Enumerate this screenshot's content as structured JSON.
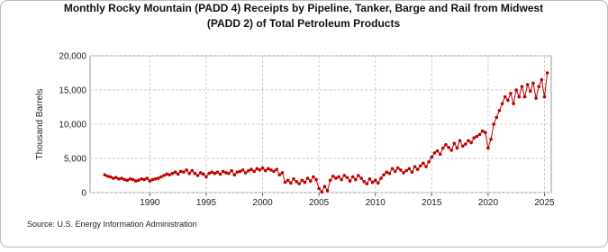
{
  "chart_data": {
    "type": "line",
    "title": [
      "Monthly Rocky Mountain (PADD 4) Receipts by Pipeline, Tanker, Barge and Rail from Midwest",
      "(PADD 2) of Total Petroleum Products"
    ],
    "y_label": "Thousand Barrels",
    "source": "Source: U.S. Energy Information Administration",
    "xlim": [
      1984.7,
      2025.6
    ],
    "xticks": [
      1990,
      1995,
      2000,
      2005,
      2010,
      2015,
      2020,
      2025
    ],
    "ylim": [
      0,
      20000
    ],
    "yticks": [
      0,
      {
        "value": 5000,
        "label": "5,000"
      },
      {
        "value": 10000,
        "label": "10,000"
      },
      {
        "value": 15000,
        "label": "15,000"
      },
      {
        "value": 20000,
        "label": "20,000"
      }
    ],
    "grid": true,
    "x": [
      1986,
      1986.25,
      1986.5,
      1986.75,
      1987,
      1987.25,
      1987.5,
      1987.75,
      1988,
      1988.25,
      1988.5,
      1988.75,
      1989,
      1989.25,
      1989.5,
      1989.75,
      1990,
      1990.25,
      1990.5,
      1990.75,
      1991,
      1991.25,
      1991.5,
      1991.75,
      1992,
      1992.25,
      1992.5,
      1992.75,
      1993,
      1993.25,
      1993.5,
      1993.75,
      1994,
      1994.25,
      1994.5,
      1994.75,
      1995,
      1995.25,
      1995.5,
      1995.75,
      1996,
      1996.25,
      1996.5,
      1996.75,
      1997,
      1997.25,
      1997.5,
      1997.75,
      1998,
      1998.25,
      1998.5,
      1998.75,
      1999,
      1999.25,
      1999.5,
      1999.75,
      2000,
      2000.25,
      2000.5,
      2000.75,
      2001,
      2001.25,
      2001.5,
      2001.75,
      2002,
      2002.25,
      2002.5,
      2002.75,
      2003,
      2003.25,
      2003.5,
      2003.75,
      2004,
      2004.25,
      2004.5,
      2004.75,
      2005,
      2005.25,
      2005.5,
      2005.75,
      2006,
      2006.25,
      2006.5,
      2006.75,
      2007,
      2007.25,
      2007.5,
      2007.75,
      2008,
      2008.25,
      2008.5,
      2008.75,
      2009,
      2009.25,
      2009.5,
      2009.75,
      2010,
      2010.25,
      2010.5,
      2010.75,
      2011,
      2011.25,
      2011.5,
      2011.75,
      2012,
      2012.25,
      2012.5,
      2012.75,
      2013,
      2013.25,
      2013.5,
      2013.75,
      2014,
      2014.25,
      2014.5,
      2014.75,
      2015,
      2015.25,
      2015.5,
      2015.75,
      2016,
      2016.25,
      2016.5,
      2016.75,
      2017,
      2017.25,
      2017.5,
      2017.75,
      2018,
      2018.25,
      2018.5,
      2018.75,
      2019,
      2019.25,
      2019.5,
      2019.75,
      2020,
      2020.25,
      2020.5,
      2020.75,
      2021,
      2021.25,
      2021.5,
      2021.75,
      2022,
      2022.25,
      2022.5,
      2022.75,
      2023,
      2023.25,
      2023.5,
      2023.75,
      2024,
      2024.25,
      2024.5,
      2024.75,
      2025,
      2025.25
    ],
    "series": [
      {
        "color": "#c00000",
        "values": [
          2600,
          2400,
          2300,
          2100,
          2200,
          2000,
          2100,
          1900,
          1800,
          2000,
          1900,
          1700,
          1800,
          2000,
          1900,
          2100,
          1700,
          1900,
          2000,
          2100,
          2300,
          2500,
          2700,
          2600,
          2800,
          3000,
          2700,
          3100,
          3000,
          3300,
          2800,
          3200,
          2800,
          2500,
          2900,
          2700,
          2300,
          2800,
          3000,
          2800,
          3000,
          2700,
          3100,
          2900,
          2800,
          3200,
          2600,
          3000,
          3100,
          3300,
          2900,
          3200,
          3400,
          3100,
          3500,
          3300,
          3600,
          3200,
          3500,
          3300,
          3100,
          3400,
          2600,
          2900,
          1500,
          1800,
          1400,
          2000,
          1600,
          1300,
          1800,
          1500,
          2100,
          1700,
          2300,
          1900,
          600,
          100,
          900,
          300,
          1800,
          2400,
          2100,
          2300,
          1900,
          2500,
          2200,
          1700,
          2300,
          1900,
          2500,
          2100,
          1600,
          1300,
          2000,
          1500,
          1800,
          1400,
          2100,
          2600,
          3000,
          2800,
          3500,
          3100,
          3600,
          3300,
          2900,
          3200,
          3500,
          3000,
          3800,
          3400,
          3900,
          4300,
          3800,
          4500,
          5200,
          5800,
          6100,
          5600,
          6500,
          7000,
          6600,
          6200,
          7200,
          6500,
          7600,
          6800,
          7100,
          7600,
          7300,
          8000,
          8200,
          8500,
          9000,
          8800,
          6500,
          7800,
          10000,
          11000,
          12000,
          13000,
          14000,
          13500,
          14500,
          13000,
          15000,
          14000,
          15500,
          14000,
          15800,
          14800,
          16000,
          13800,
          15500,
          16500,
          14000,
          17500
        ]
      }
    ]
  }
}
